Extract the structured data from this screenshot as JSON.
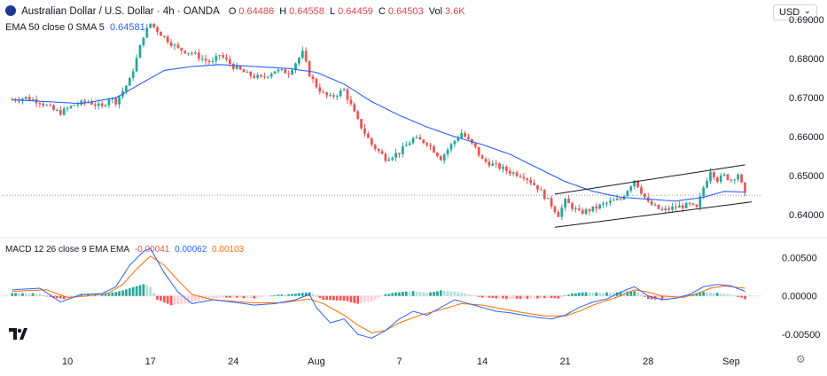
{
  "header": {
    "symbol": "Australian Dollar / U.S. Dollar · 4h · OANDA",
    "ohlc": {
      "o_label": "O",
      "o": "0.64486",
      "h_label": "H",
      "h": "0.64558",
      "l_label": "L",
      "l": "0.64459",
      "c_label": "C",
      "c": "0.64503",
      "vol_label": "Vol",
      "vol": "3.6K"
    },
    "ema_label": "EMA 50 close 0 SMA 5",
    "ema_value": "0.64581",
    "macd_label": "MACD 12 26 close 9 EMA EMA",
    "macd_hist": "-0.00041",
    "macd_line": "0.00062",
    "macd_signal": "0.00103",
    "currency": "USD"
  },
  "colors": {
    "up": "#26a69a",
    "down": "#ef5350",
    "ema": "#2962ff",
    "macd": "#2962ff",
    "signal": "#ff6d00",
    "channel": "#131722",
    "grid_text": "#131722"
  },
  "chart_data": [
    {
      "type": "candlestick",
      "title": "Australian Dollar / U.S. Dollar · 4h · OANDA",
      "ylabel": "USD",
      "ylim": [
        0.6355,
        0.6905
      ],
      "y_ticks": [
        "0.69000",
        "0.68000",
        "0.67000",
        "0.66000",
        "0.65000",
        "0.64000"
      ],
      "y_tick_values": [
        0.69,
        0.68,
        0.67,
        0.66,
        0.65,
        0.64
      ],
      "x_ticks": [
        "10",
        "17",
        "24",
        "Aug",
        "7",
        "14",
        "21",
        "28",
        "Sep"
      ],
      "x_tick_index": [
        16,
        40,
        64,
        88,
        112,
        136,
        160,
        184,
        208
      ],
      "current_price": 0.64503,
      "close_path": [
        [
          0,
          0.6695
        ],
        [
          4,
          0.67
        ],
        [
          8,
          0.669
        ],
        [
          12,
          0.6668
        ],
        [
          14,
          0.6662
        ],
        [
          18,
          0.6682
        ],
        [
          22,
          0.669
        ],
        [
          26,
          0.6675
        ],
        [
          28,
          0.67
        ],
        [
          30,
          0.669
        ],
        [
          34,
          0.6745
        ],
        [
          36,
          0.68
        ],
        [
          38,
          0.686
        ],
        [
          40,
          0.689
        ],
        [
          44,
          0.6855
        ],
        [
          48,
          0.6825
        ],
        [
          52,
          0.6815
        ],
        [
          56,
          0.6795
        ],
        [
          58,
          0.679
        ],
        [
          60,
          0.681
        ],
        [
          64,
          0.678
        ],
        [
          68,
          0.676
        ],
        [
          72,
          0.675
        ],
        [
          76,
          0.677
        ],
        [
          80,
          0.6765
        ],
        [
          84,
          0.6815
        ],
        [
          86,
          0.676
        ],
        [
          88,
          0.673
        ],
        [
          90,
          0.671
        ],
        [
          92,
          0.67
        ],
        [
          96,
          0.672
        ],
        [
          100,
          0.664
        ],
        [
          104,
          0.658
        ],
        [
          108,
          0.6545
        ],
        [
          112,
          0.656
        ],
        [
          116,
          0.6595
        ],
        [
          120,
          0.6585
        ],
        [
          124,
          0.6545
        ],
        [
          128,
          0.659
        ],
        [
          130,
          0.661
        ],
        [
          134,
          0.657
        ],
        [
          136,
          0.654
        ],
        [
          140,
          0.6525
        ],
        [
          144,
          0.651
        ],
        [
          148,
          0.65
        ],
        [
          152,
          0.647
        ],
        [
          156,
          0.6425
        ],
        [
          158,
          0.64
        ],
        [
          160,
          0.6435
        ],
        [
          164,
          0.6405
        ],
        [
          168,
          0.6415
        ],
        [
          172,
          0.643
        ],
        [
          176,
          0.644
        ],
        [
          180,
          0.649
        ],
        [
          184,
          0.643
        ],
        [
          188,
          0.641
        ],
        [
          192,
          0.642
        ],
        [
          196,
          0.6425
        ],
        [
          198,
          0.6415
        ],
        [
          200,
          0.647
        ],
        [
          202,
          0.6515
        ],
        [
          204,
          0.649
        ],
        [
          206,
          0.65
        ],
        [
          208,
          0.649
        ],
        [
          210,
          0.6505
        ],
        [
          212,
          0.645
        ]
      ],
      "ema_path": [
        [
          0,
          0.6695
        ],
        [
          20,
          0.6685
        ],
        [
          30,
          0.67
        ],
        [
          38,
          0.674
        ],
        [
          44,
          0.677
        ],
        [
          52,
          0.678
        ],
        [
          60,
          0.6785
        ],
        [
          70,
          0.678
        ],
        [
          80,
          0.6775
        ],
        [
          88,
          0.6765
        ],
        [
          96,
          0.6735
        ],
        [
          104,
          0.669
        ],
        [
          112,
          0.6655
        ],
        [
          120,
          0.6625
        ],
        [
          128,
          0.66
        ],
        [
          136,
          0.658
        ],
        [
          144,
          0.6555
        ],
        [
          152,
          0.652
        ],
        [
          160,
          0.6485
        ],
        [
          168,
          0.646
        ],
        [
          176,
          0.6445
        ],
        [
          184,
          0.644
        ],
        [
          192,
          0.6435
        ],
        [
          200,
          0.6445
        ],
        [
          206,
          0.646
        ],
        [
          212,
          0.6458
        ]
      ],
      "channel_upper": [
        [
          157,
          0.6453
        ],
        [
          212,
          0.6528
        ]
      ],
      "channel_lower": [
        [
          157,
          0.6368
        ],
        [
          214,
          0.6433
        ]
      ],
      "index_range": [
        -3,
        217
      ]
    },
    {
      "type": "macd",
      "ylim": [
        -0.0065,
        0.0062
      ],
      "y_ticks": [
        "0.00500",
        "0.00000",
        "-0.00500"
      ],
      "y_tick_values": [
        0.005,
        0.0,
        -0.005
      ],
      "macd_path": [
        [
          0,
          0.0008
        ],
        [
          8,
          0.001
        ],
        [
          14,
          -0.0008
        ],
        [
          20,
          0.0002
        ],
        [
          26,
          0.0003
        ],
        [
          30,
          0.0012
        ],
        [
          34,
          0.004
        ],
        [
          38,
          0.0058
        ],
        [
          40,
          0.0062
        ],
        [
          44,
          0.003
        ],
        [
          48,
          0.0005
        ],
        [
          52,
          -0.001
        ],
        [
          58,
          -0.0005
        ],
        [
          64,
          -0.0008
        ],
        [
          70,
          -0.0012
        ],
        [
          76,
          -0.001
        ],
        [
          82,
          -0.0005
        ],
        [
          86,
          0.0002
        ],
        [
          88,
          -0.0015
        ],
        [
          92,
          -0.0035
        ],
        [
          96,
          -0.003
        ],
        [
          100,
          -0.005
        ],
        [
          104,
          -0.0055
        ],
        [
          108,
          -0.0045
        ],
        [
          112,
          -0.003
        ],
        [
          116,
          -0.002
        ],
        [
          120,
          -0.0025
        ],
        [
          124,
          -0.0015
        ],
        [
          128,
          -0.0005
        ],
        [
          132,
          -0.001
        ],
        [
          136,
          -0.0015
        ],
        [
          140,
          -0.002
        ],
        [
          144,
          -0.0022
        ],
        [
          148,
          -0.0025
        ],
        [
          152,
          -0.0028
        ],
        [
          156,
          -0.003
        ],
        [
          160,
          -0.0025
        ],
        [
          164,
          -0.0015
        ],
        [
          168,
          -0.0008
        ],
        [
          172,
          -0.0004
        ],
        [
          176,
          0.0005
        ],
        [
          180,
          0.0012
        ],
        [
          184,
          0.0
        ],
        [
          188,
          -0.0005
        ],
        [
          192,
          -0.0003
        ],
        [
          196,
          0.0002
        ],
        [
          200,
          0.0012
        ],
        [
          204,
          0.0015
        ],
        [
          208,
          0.0013
        ],
        [
          212,
          0.0006
        ]
      ],
      "signal_path": [
        [
          0,
          0.0006
        ],
        [
          10,
          0.0008
        ],
        [
          16,
          -0.0002
        ],
        [
          22,
          0.0
        ],
        [
          28,
          0.0004
        ],
        [
          32,
          0.0015
        ],
        [
          36,
          0.0035
        ],
        [
          40,
          0.0052
        ],
        [
          44,
          0.004
        ],
        [
          48,
          0.002
        ],
        [
          52,
          0.0002
        ],
        [
          58,
          -0.0005
        ],
        [
          64,
          -0.0007
        ],
        [
          70,
          -0.0009
        ],
        [
          78,
          -0.0009
        ],
        [
          86,
          -0.0004
        ],
        [
          90,
          -0.001
        ],
        [
          96,
          -0.0025
        ],
        [
          100,
          -0.0038
        ],
        [
          104,
          -0.0048
        ],
        [
          108,
          -0.0045
        ],
        [
          112,
          -0.0035
        ],
        [
          118,
          -0.0025
        ],
        [
          124,
          -0.0018
        ],
        [
          130,
          -0.001
        ],
        [
          136,
          -0.0012
        ],
        [
          142,
          -0.0017
        ],
        [
          148,
          -0.0022
        ],
        [
          154,
          -0.0026
        ],
        [
          160,
          -0.0026
        ],
        [
          164,
          -0.002
        ],
        [
          168,
          -0.0012
        ],
        [
          172,
          -0.0006
        ],
        [
          176,
          0.0
        ],
        [
          180,
          0.0008
        ],
        [
          184,
          0.0005
        ],
        [
          188,
          0.0
        ],
        [
          194,
          -0.0002
        ],
        [
          198,
          0.0003
        ],
        [
          202,
          0.001
        ],
        [
          206,
          0.0013
        ],
        [
          212,
          0.001
        ]
      ],
      "hist_path": [
        [
          0,
          0.0004
        ],
        [
          8,
          0.0003
        ],
        [
          12,
          -0.0003
        ],
        [
          16,
          -0.0004
        ],
        [
          20,
          0.0002
        ],
        [
          26,
          0.0002
        ],
        [
          30,
          0.0005
        ],
        [
          34,
          0.001
        ],
        [
          38,
          0.0015
        ],
        [
          40,
          0.0012
        ],
        [
          42,
          -0.0005
        ],
        [
          46,
          -0.0012
        ],
        [
          50,
          -0.001
        ],
        [
          54,
          -0.0006
        ],
        [
          60,
          -0.0002
        ],
        [
          70,
          -0.0003
        ],
        [
          76,
          0.0001
        ],
        [
          82,
          0.0003
        ],
        [
          86,
          0.0005
        ],
        [
          90,
          -0.0005
        ],
        [
          96,
          -0.0006
        ],
        [
          100,
          -0.001
        ],
        [
          104,
          -0.0007
        ],
        [
          108,
          0.0002
        ],
        [
          112,
          0.0005
        ],
        [
          116,
          0.0006
        ],
        [
          120,
          0.0004
        ],
        [
          124,
          0.0007
        ],
        [
          128,
          0.0006
        ],
        [
          132,
          0.0002
        ],
        [
          136,
          -0.0002
        ],
        [
          144,
          -0.0004
        ],
        [
          152,
          -0.0003
        ],
        [
          158,
          -0.0003
        ],
        [
          162,
          0.0003
        ],
        [
          166,
          0.0005
        ],
        [
          170,
          0.0004
        ],
        [
          176,
          0.0005
        ],
        [
          180,
          0.0006
        ],
        [
          184,
          -0.0004
        ],
        [
          188,
          -0.0005
        ],
        [
          192,
          -0.0002
        ],
        [
          196,
          0.0002
        ],
        [
          200,
          0.0005
        ],
        [
          204,
          0.0004
        ],
        [
          208,
          0.0002
        ],
        [
          212,
          -0.0004
        ]
      ]
    }
  ]
}
